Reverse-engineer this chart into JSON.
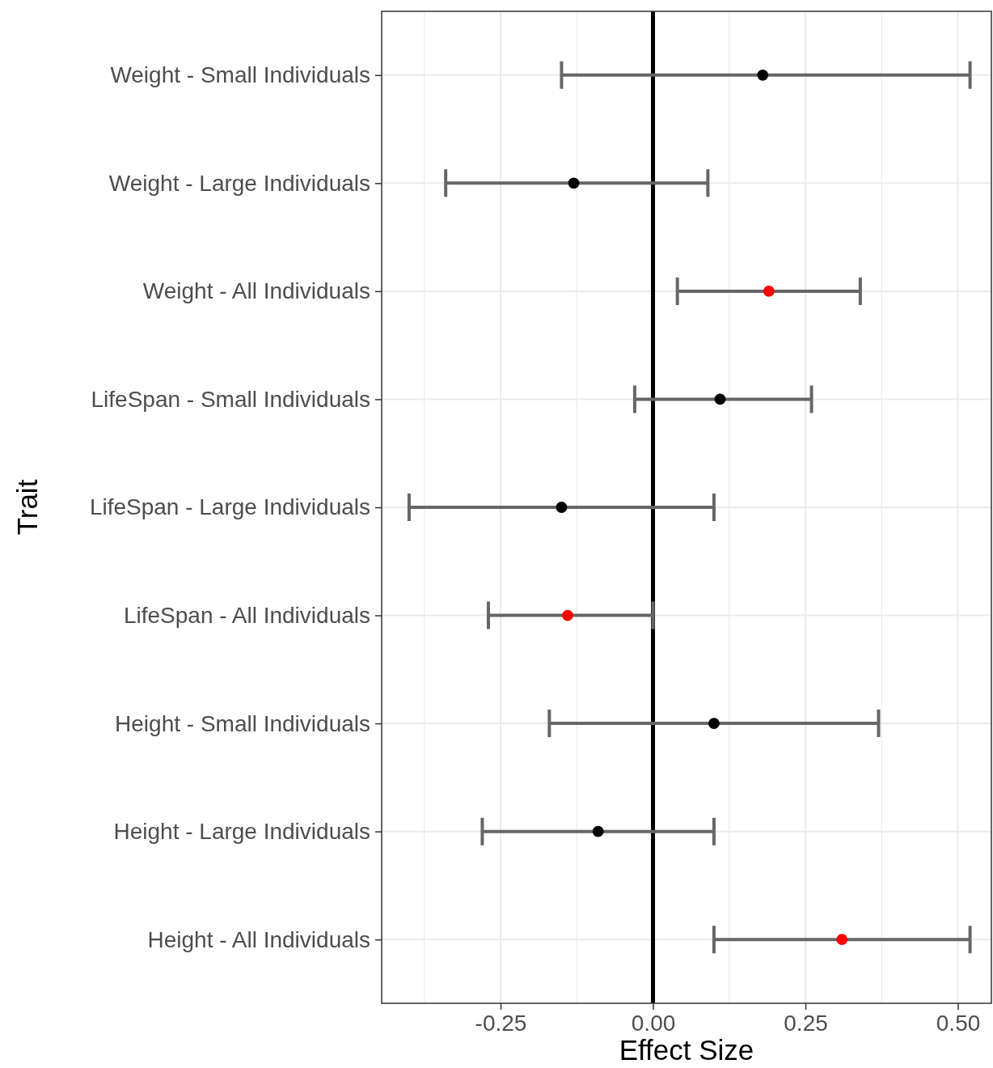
{
  "chart_data": {
    "type": "scatter",
    "orientation": "horizontal",
    "xlabel": "Effect Size",
    "ylabel": "Trait",
    "categories": [
      "Weight - Small Individuals",
      "Weight - Large Individuals",
      "Weight - All Individuals",
      "LifeSpan - Small Individuals",
      "LifeSpan - Large Individuals",
      "LifeSpan - All Individuals",
      "Height - Small Individuals",
      "Height - Large Individuals",
      "Height - All Individuals"
    ],
    "values": [
      0.18,
      -0.13,
      0.19,
      0.11,
      -0.15,
      -0.14,
      0.1,
      -0.09,
      0.31
    ],
    "colors": [
      "#000000",
      "#000000",
      "#ff0000",
      "#000000",
      "#000000",
      "#ff0000",
      "#000000",
      "#000000",
      "#ff0000"
    ],
    "errors": [
      [
        -0.15,
        0.52
      ],
      [
        -0.34,
        0.09
      ],
      [
        0.04,
        0.34
      ],
      [
        -0.03,
        0.26
      ],
      [
        -0.4,
        0.1
      ],
      [
        -0.27,
        0.0
      ],
      [
        -0.17,
        0.37
      ],
      [
        -0.28,
        0.1
      ],
      [
        0.1,
        0.52
      ]
    ],
    "xlim": [
      -0.445,
      0.555
    ],
    "xticks": [
      {
        "value": -0.375,
        "label": null
      },
      -0.25,
      {
        "value": -0.125,
        "label": null
      },
      {
        "value": 0,
        "label": "0.00"
      },
      {
        "value": 0.125,
        "label": null
      },
      0.25,
      {
        "value": 0.375,
        "label": null
      },
      {
        "value": 0.5,
        "label": "0.50"
      }
    ],
    "ref_lines": [
      {
        "axis": "x",
        "value": 0,
        "color": "#000000"
      }
    ],
    "grid": true,
    "marker": "circle"
  }
}
